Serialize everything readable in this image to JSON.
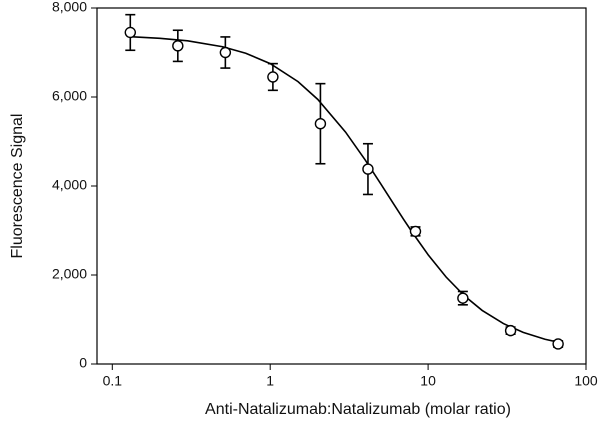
{
  "chart_data": {
    "type": "scatter",
    "x_label": "Anti-Natalizumab:Natalizumab (molar ratio)",
    "y_label": "Fluorescence Signal",
    "x_scale": "log",
    "xlim": [
      0.08,
      100
    ],
    "xticks": [
      0.1,
      1,
      10,
      100
    ],
    "ylim": [
      0,
      8000
    ],
    "yticks": [
      0,
      {
        "value": 2000,
        "label": "2,000"
      },
      {
        "value": 4000,
        "label": "4,000"
      },
      {
        "value": 6000,
        "label": "6,000"
      },
      {
        "value": 8000,
        "label": "8,000"
      }
    ],
    "x": [
      0.13,
      0.26,
      0.52,
      1.04,
      2.08,
      4.16,
      8.32,
      16.6,
      33.3,
      66.6
    ],
    "series": [
      {
        "color": "#000000",
        "values": [
          7450,
          7150,
          7000,
          6450,
          5400,
          4380,
          2980,
          1480,
          750,
          450
        ],
        "errors": [
          400,
          350,
          350,
          300,
          900,
          570,
          100,
          150,
          80,
          70
        ]
      }
    ],
    "fit": {
      "color": "#000000",
      "x": [
        0.13,
        0.2,
        0.3,
        0.5,
        0.7,
        1,
        1.5,
        2,
        3,
        4,
        5,
        6,
        7,
        8,
        10,
        13,
        17,
        22,
        30,
        40,
        55,
        70
      ],
      "values": [
        7355,
        7319,
        7262,
        7129,
        6984,
        6750,
        6346,
        5947,
        5212,
        4583,
        4055,
        3616,
        3249,
        2941,
        2456,
        1955,
        1530,
        1204,
        908,
        710,
        556,
        474
      ]
    }
  }
}
